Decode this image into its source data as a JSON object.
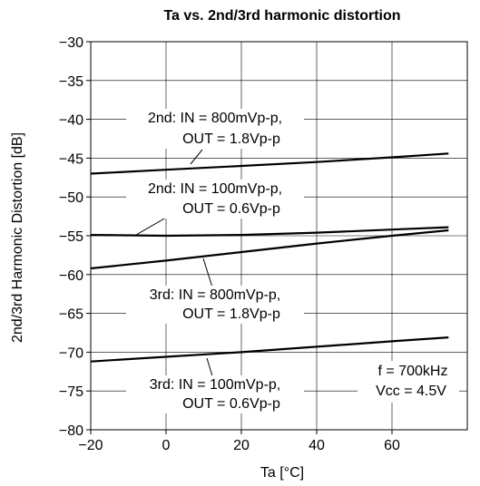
{
  "chart_data": {
    "type": "line",
    "title": "Ta vs. 2nd/3rd harmonic distortion",
    "xlabel": "Ta [°C]",
    "ylabel": "2nd/3rd Harmonic Distortion [dB]",
    "xlim": [
      -20,
      80
    ],
    "ylim": [
      -80,
      -30
    ],
    "xticks": [
      "−20",
      "0",
      "20",
      "40",
      "60"
    ],
    "yticks": [
      "−30",
      "−35",
      "−40",
      "−45",
      "−50",
      "−55",
      "−60",
      "−65",
      "−70",
      "−75",
      "−80"
    ],
    "grid": true,
    "series": [
      {
        "name": "2nd: IN = 800mVp-p, OUT = 1.8Vp-p",
        "label_lines": [
          "2nd: IN = 800mVp-p,",
          "OUT = 1.8Vp-p"
        ],
        "x": [
          -20,
          0,
          20,
          40,
          60,
          75
        ],
        "y": [
          -47.0,
          -46.5,
          -46.0,
          -45.5,
          -44.9,
          -44.4
        ]
      },
      {
        "name": "2nd: IN = 100mVp-p, OUT = 0.6Vp-p",
        "label_lines": [
          "2nd: IN = 100mVp-p,",
          "OUT = 0.6Vp-p"
        ],
        "x": [
          -20,
          0,
          20,
          40,
          60,
          75
        ],
        "y": [
          -54.9,
          -55.0,
          -54.9,
          -54.6,
          -54.2,
          -53.9
        ]
      },
      {
        "name": "3rd: IN = 800mVp-p, OUT = 1.8Vp-p",
        "label_lines": [
          "3rd: IN = 800mVp-p,",
          "OUT = 1.8Vp-p"
        ],
        "x": [
          -20,
          0,
          20,
          40,
          60,
          75
        ],
        "y": [
          -59.2,
          -58.2,
          -57.1,
          -56.0,
          -55.0,
          -54.3
        ]
      },
      {
        "name": "3rd: IN = 100mVp-p, OUT = 0.6Vp-p",
        "label_lines": [
          "3rd: IN = 100mVp-p,",
          "OUT = 0.6Vp-p"
        ],
        "x": [
          -20,
          0,
          20,
          40,
          60,
          75
        ],
        "y": [
          -71.2,
          -70.6,
          -70.0,
          -69.3,
          -68.6,
          -68.1
        ]
      }
    ],
    "conditions": [
      "f = 700kHz",
      "Vcc = 4.5V"
    ],
    "line_color": "#000000",
    "grid_color": "#000000"
  }
}
